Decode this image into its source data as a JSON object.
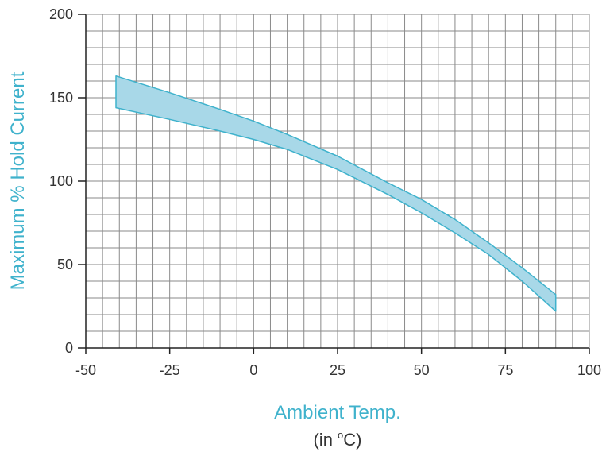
{
  "chart_data": {
    "type": "area",
    "xlabel": "Ambient Temp.",
    "xlabel_unit_prefix": "(in ",
    "xlabel_unit_degree": "o",
    "xlabel_unit_suffix": "C)",
    "ylabel": "Maximum % Hold Current",
    "xlim": [
      -50,
      100
    ],
    "ylim": [
      0,
      200
    ],
    "x_ticks": [
      -50,
      -25,
      0,
      25,
      50,
      75,
      100
    ],
    "y_ticks": [
      0,
      50,
      100,
      150,
      200
    ],
    "grid": true,
    "minor_grid_step_x": 5,
    "minor_grid_step_y": 10,
    "series": [
      {
        "x": [
          -41,
          -25,
          -10,
          0,
          10,
          25,
          40,
          50,
          60,
          70,
          80,
          90
        ],
        "upper": [
          163,
          153,
          143,
          136,
          128,
          115,
          99,
          89,
          77,
          63,
          48,
          32
        ],
        "lower": [
          144,
          137,
          130,
          125,
          119,
          107,
          92,
          81,
          69,
          56,
          40,
          22
        ]
      }
    ],
    "colors": {
      "band_fill": "#a8d8e8",
      "band_stroke": "#3fb2cc",
      "axis_title": "#3fb2cc",
      "grid": "#8a8a8a",
      "axis": "#222222",
      "tick_text": "#333333"
    }
  }
}
